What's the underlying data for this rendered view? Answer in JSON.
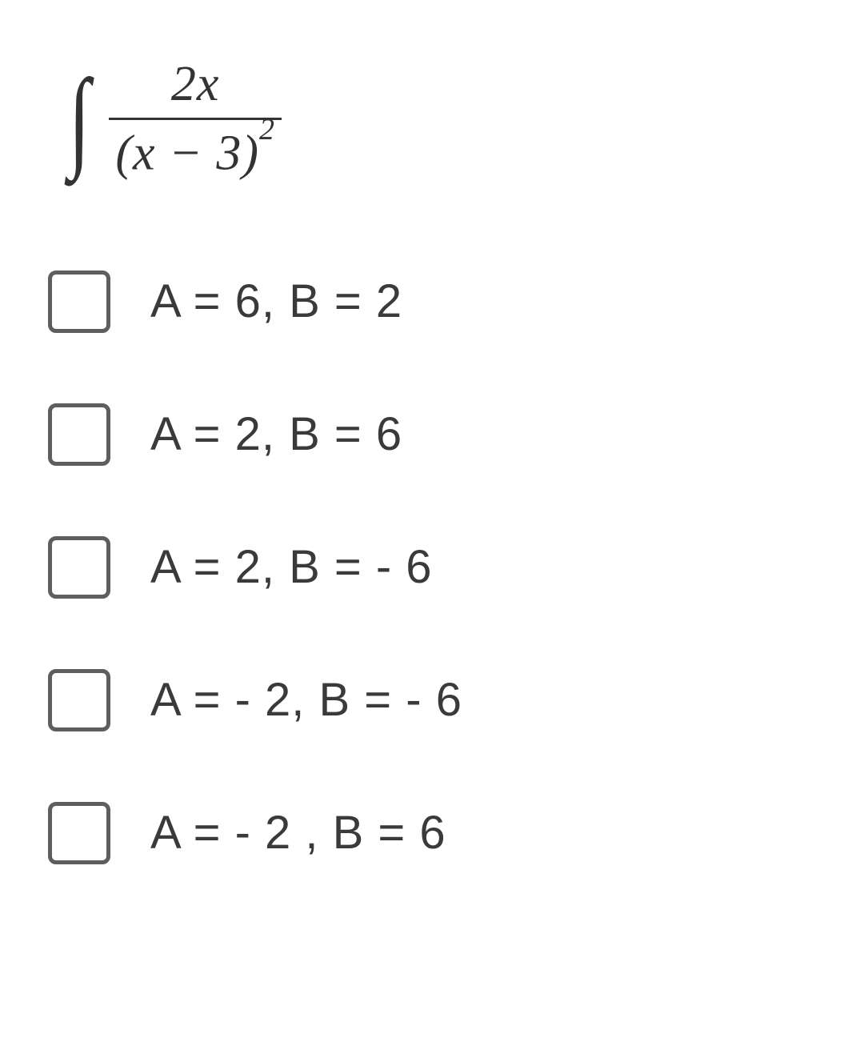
{
  "question": {
    "integral": {
      "numerator": "2x",
      "denominator_base": "(x − 3)",
      "denominator_exp": "2"
    }
  },
  "options": [
    {
      "label": "A = 6, B = 2"
    },
    {
      "label": "A = 2, B = 6"
    },
    {
      "label": "A = 2, B = - 6"
    },
    {
      "label": "A = - 2, B = - 6"
    },
    {
      "label": "A = - 2 , B = 6"
    }
  ],
  "colors": {
    "text": "#333333",
    "option_text": "#3a3a3a",
    "checkbox_border": "#5e5e5e",
    "background": "#ffffff"
  },
  "font_sizes": {
    "fraction": 62,
    "integral_sign": 140,
    "option_label": 58,
    "superscript": 38
  }
}
